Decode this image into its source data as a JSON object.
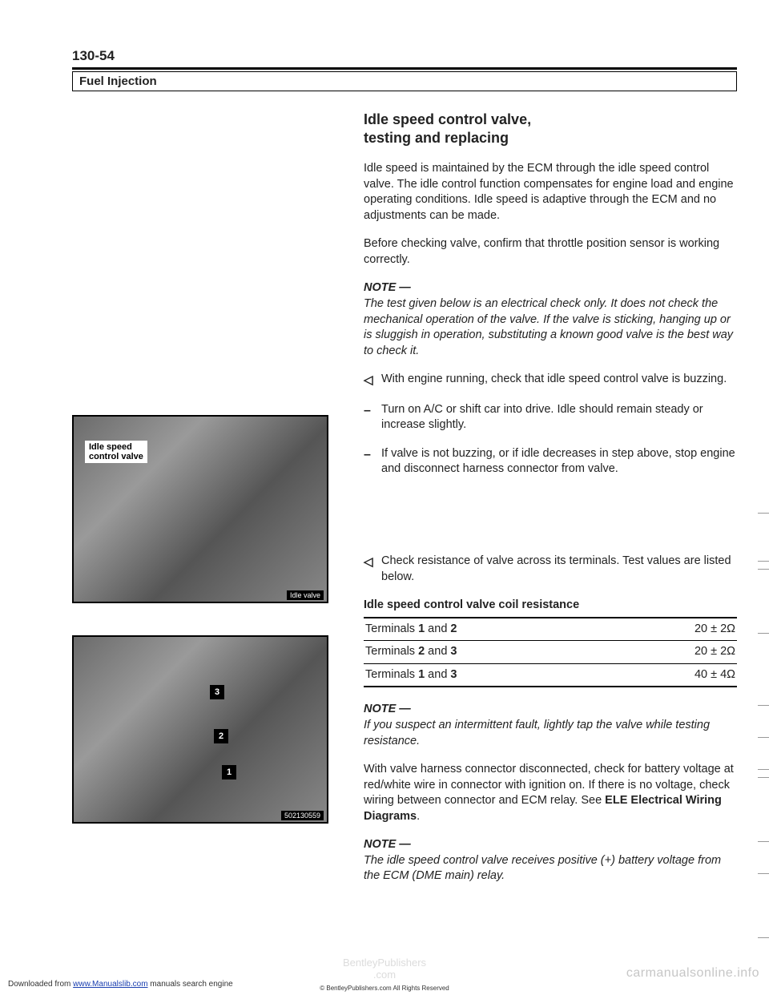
{
  "page_number": "130-54",
  "section_title": "Fuel Injection",
  "heading_line1": "Idle speed control valve,",
  "heading_line2": "testing and replacing",
  "intro_para1": "Idle speed is maintained by the ECM through the idle speed control valve. The idle control function compensates for engine load and engine operating conditions. Idle speed is adaptive through the ECM and no adjustments can be made.",
  "intro_para2": "Before checking valve, confirm that throttle position sensor is working correctly.",
  "note1_head": "NOTE —",
  "note1_text": "The test given below is an electrical check only. It does not check the mechanical operation of the valve. If the valve is sticking, hanging up or is sluggish in operation, substituting a known good valve is the best way to check it.",
  "step1": "With engine running, check that idle speed control valve is buzzing.",
  "step2": "Turn on A/C or shift car into drive. Idle should remain steady or increase slightly.",
  "step3": "If valve is not buzzing, or if idle decreases in step above, stop engine and disconnect harness connector from valve.",
  "step4": "Check resistance of valve across its terminals. Test values are listed below.",
  "table_title": "Idle speed control valve coil resistance",
  "table": {
    "rows": [
      {
        "label_a": "Terminals ",
        "bold_a": "1",
        "mid": " and ",
        "bold_b": "2",
        "value": "20 ± 2Ω"
      },
      {
        "label_a": "Terminals ",
        "bold_a": "2",
        "mid": " and ",
        "bold_b": "3",
        "value": "20 ± 2Ω"
      },
      {
        "label_a": "Terminals ",
        "bold_a": "1",
        "mid": " and ",
        "bold_b": "3",
        "value": "40 ± 4Ω"
      }
    ]
  },
  "note2_head": "NOTE —",
  "note2_text": "If you suspect an intermittent fault, lightly tap the valve while testing resistance.",
  "closing_para_a": "With valve harness connector disconnected, check for battery voltage at red/white wire in connector with ignition on. If there is no voltage, check wiring between connector and ECM relay. See ",
  "closing_para_bold": "ELE Electrical Wiring Diagrams",
  "closing_para_b": ".",
  "note3_head": "NOTE —",
  "note3_text": "The idle speed control valve receives positive (+) battery voltage from the ECM (DME main) relay.",
  "img1_label_line1": "Idle speed",
  "img1_label_line2": "control valve",
  "img1_caption": "Idle valve",
  "img2_caption": "502130559",
  "watermark_right": "carmanualsonline.info",
  "watermark_center_line1": "BentleyPublishers",
  "watermark_center_line2": ".com",
  "footer_left_a": "Downloaded from ",
  "footer_left_link": "www.Manualslib.com",
  "footer_left_b": " manuals search engine",
  "footer_center_small": "© BentleyPublishers.com All Rights Reserved"
}
